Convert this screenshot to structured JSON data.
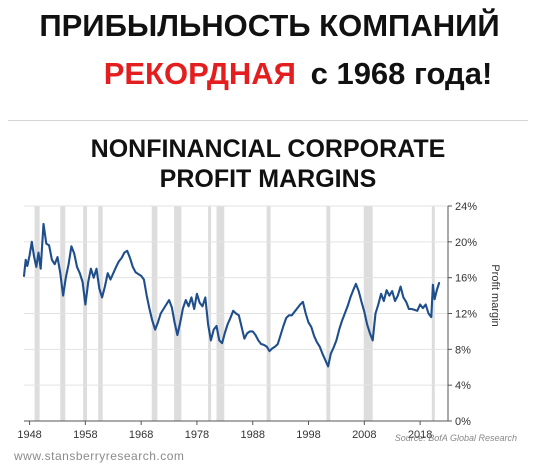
{
  "headline": {
    "line1": "ПРИБЫЛЬНОСТЬ КОМПАНИЙ",
    "line2_red": "РЕКОРДНАЯ",
    "line2_rest": "с 1968 года!",
    "red_color": "#e41e1e"
  },
  "chart_data": {
    "type": "line",
    "title_line1": "NONFINANCIAL CORPORATE",
    "title_line2": "PROFIT MARGINS",
    "ylabel": "Profit margin",
    "xlabel": "",
    "ylim": [
      0,
      24
    ],
    "xlim": [
      1947,
      2023
    ],
    "y_ticks": [
      "0%",
      "4%",
      "8%",
      "12%",
      "16%",
      "20%",
      "24%"
    ],
    "y_tick_values": [
      0,
      4,
      8,
      12,
      16,
      20,
      24
    ],
    "x_ticks": [
      "1948",
      "1958",
      "1968",
      "1978",
      "1988",
      "1998",
      "2008",
      "2018"
    ],
    "x_tick_values": [
      1948,
      1958,
      1968,
      1978,
      1988,
      1998,
      2008,
      2018
    ],
    "grid": true,
    "line_color": "#1f4e8c",
    "recession_color": "#dddddd",
    "recessions": [
      [
        1948.9,
        1949.8
      ],
      [
        1953.5,
        1954.4
      ],
      [
        1957.6,
        1958.3
      ],
      [
        1960.3,
        1961.1
      ],
      [
        1969.9,
        1970.9
      ],
      [
        1973.9,
        1975.2
      ],
      [
        1980.0,
        1980.5
      ],
      [
        1981.5,
        1982.9
      ],
      [
        1990.5,
        1991.2
      ],
      [
        2001.2,
        2001.9
      ],
      [
        2007.9,
        2009.5
      ],
      [
        2020.1,
        2020.5
      ]
    ],
    "series": [
      {
        "points": [
          [
            1947.0,
            16.2
          ],
          [
            1947.3,
            18.0
          ],
          [
            1947.6,
            17.3
          ],
          [
            1948.0,
            18.5
          ],
          [
            1948.4,
            20.0
          ],
          [
            1948.8,
            18.4
          ],
          [
            1949.2,
            17.2
          ],
          [
            1949.6,
            18.8
          ],
          [
            1950.0,
            17.0
          ],
          [
            1950.5,
            22.0
          ],
          [
            1951.0,
            19.8
          ],
          [
            1951.5,
            19.6
          ],
          [
            1952.0,
            18.0
          ],
          [
            1952.5,
            17.5
          ],
          [
            1953.0,
            18.3
          ],
          [
            1953.5,
            16.5
          ],
          [
            1954.0,
            14.0
          ],
          [
            1954.5,
            16.0
          ],
          [
            1955.0,
            17.5
          ],
          [
            1955.5,
            19.5
          ],
          [
            1956.0,
            18.7
          ],
          [
            1956.5,
            17.2
          ],
          [
            1957.0,
            16.5
          ],
          [
            1957.5,
            15.5
          ],
          [
            1958.0,
            13.0
          ],
          [
            1958.5,
            15.5
          ],
          [
            1959.0,
            17.0
          ],
          [
            1959.5,
            16.0
          ],
          [
            1960.0,
            17.0
          ],
          [
            1960.5,
            14.8
          ],
          [
            1961.0,
            13.8
          ],
          [
            1961.5,
            15.0
          ],
          [
            1962.0,
            16.5
          ],
          [
            1962.5,
            15.8
          ],
          [
            1963.0,
            16.5
          ],
          [
            1963.5,
            17.2
          ],
          [
            1964.0,
            17.8
          ],
          [
            1964.5,
            18.2
          ],
          [
            1965.0,
            18.8
          ],
          [
            1965.5,
            19.0
          ],
          [
            1966.0,
            18.2
          ],
          [
            1966.5,
            17.2
          ],
          [
            1967.0,
            16.6
          ],
          [
            1967.5,
            16.4
          ],
          [
            1968.0,
            16.2
          ],
          [
            1968.5,
            15.8
          ],
          [
            1969.0,
            14.0
          ],
          [
            1969.5,
            12.5
          ],
          [
            1970.0,
            11.2
          ],
          [
            1970.5,
            10.2
          ],
          [
            1971.0,
            11.0
          ],
          [
            1971.5,
            12.0
          ],
          [
            1972.0,
            12.5
          ],
          [
            1972.5,
            13.0
          ],
          [
            1973.0,
            13.5
          ],
          [
            1973.5,
            12.7
          ],
          [
            1974.0,
            11.0
          ],
          [
            1974.5,
            9.6
          ],
          [
            1975.0,
            11.0
          ],
          [
            1975.5,
            12.6
          ],
          [
            1976.0,
            13.5
          ],
          [
            1976.5,
            12.8
          ],
          [
            1977.0,
            13.8
          ],
          [
            1977.5,
            12.5
          ],
          [
            1978.0,
            14.2
          ],
          [
            1978.5,
            13.2
          ],
          [
            1979.0,
            12.8
          ],
          [
            1979.5,
            13.8
          ],
          [
            1980.0,
            10.8
          ],
          [
            1980.5,
            9.0
          ],
          [
            1981.0,
            10.2
          ],
          [
            1981.5,
            10.6
          ],
          [
            1982.0,
            9.0
          ],
          [
            1982.5,
            8.7
          ],
          [
            1983.0,
            9.8
          ],
          [
            1983.5,
            10.8
          ],
          [
            1984.0,
            11.5
          ],
          [
            1984.5,
            12.3
          ],
          [
            1985.0,
            12.0
          ],
          [
            1985.5,
            11.8
          ],
          [
            1986.0,
            10.5
          ],
          [
            1986.5,
            9.2
          ],
          [
            1987.0,
            9.8
          ],
          [
            1987.5,
            10.0
          ],
          [
            1988.0,
            10.0
          ],
          [
            1988.5,
            9.6
          ],
          [
            1989.0,
            9.0
          ],
          [
            1989.5,
            8.6
          ],
          [
            1990.0,
            8.5
          ],
          [
            1990.5,
            8.3
          ],
          [
            1991.0,
            7.8
          ],
          [
            1991.5,
            8.1
          ],
          [
            1992.0,
            8.3
          ],
          [
            1992.5,
            8.6
          ],
          [
            1993.0,
            9.6
          ],
          [
            1993.5,
            10.6
          ],
          [
            1994.0,
            11.5
          ],
          [
            1994.5,
            11.8
          ],
          [
            1995.0,
            11.8
          ],
          [
            1995.5,
            12.2
          ],
          [
            1996.0,
            12.6
          ],
          [
            1996.5,
            13.0
          ],
          [
            1997.0,
            13.3
          ],
          [
            1997.5,
            12.0
          ],
          [
            1998.0,
            11.0
          ],
          [
            1998.5,
            10.5
          ],
          [
            1999.0,
            9.5
          ],
          [
            1999.5,
            8.8
          ],
          [
            2000.0,
            8.3
          ],
          [
            2000.5,
            7.5
          ],
          [
            2001.0,
            6.8
          ],
          [
            2001.5,
            6.1
          ],
          [
            2002.0,
            7.5
          ],
          [
            2002.5,
            8.2
          ],
          [
            2003.0,
            9.0
          ],
          [
            2003.5,
            10.2
          ],
          [
            2004.0,
            11.2
          ],
          [
            2004.5,
            12.0
          ],
          [
            2005.0,
            12.8
          ],
          [
            2005.5,
            13.8
          ],
          [
            2006.0,
            14.6
          ],
          [
            2006.5,
            15.3
          ],
          [
            2007.0,
            14.5
          ],
          [
            2007.5,
            13.3
          ],
          [
            2008.0,
            12.2
          ],
          [
            2008.5,
            10.8
          ],
          [
            2009.0,
            9.8
          ],
          [
            2009.5,
            9.0
          ],
          [
            2010.0,
            12.0
          ],
          [
            2010.5,
            13.0
          ],
          [
            2011.0,
            14.2
          ],
          [
            2011.5,
            13.4
          ],
          [
            2012.0,
            14.6
          ],
          [
            2012.5,
            14.0
          ],
          [
            2013.0,
            14.5
          ],
          [
            2013.5,
            13.4
          ],
          [
            2014.0,
            14.0
          ],
          [
            2014.5,
            15.0
          ],
          [
            2015.0,
            13.8
          ],
          [
            2015.5,
            13.3
          ],
          [
            2016.0,
            12.5
          ],
          [
            2016.5,
            12.5
          ],
          [
            2017.0,
            12.4
          ],
          [
            2017.5,
            12.3
          ],
          [
            2018.0,
            13.0
          ],
          [
            2018.5,
            12.6
          ],
          [
            2019.0,
            13.0
          ],
          [
            2019.5,
            12.0
          ],
          [
            2020.0,
            11.6
          ],
          [
            2020.3,
            15.2
          ],
          [
            2020.6,
            13.6
          ],
          [
            2021.0,
            14.6
          ],
          [
            2021.4,
            15.4
          ]
        ]
      }
    ]
  },
  "footer": {
    "site": "www.stansberryresearch.com",
    "source": "Source: BofA Global Research"
  }
}
